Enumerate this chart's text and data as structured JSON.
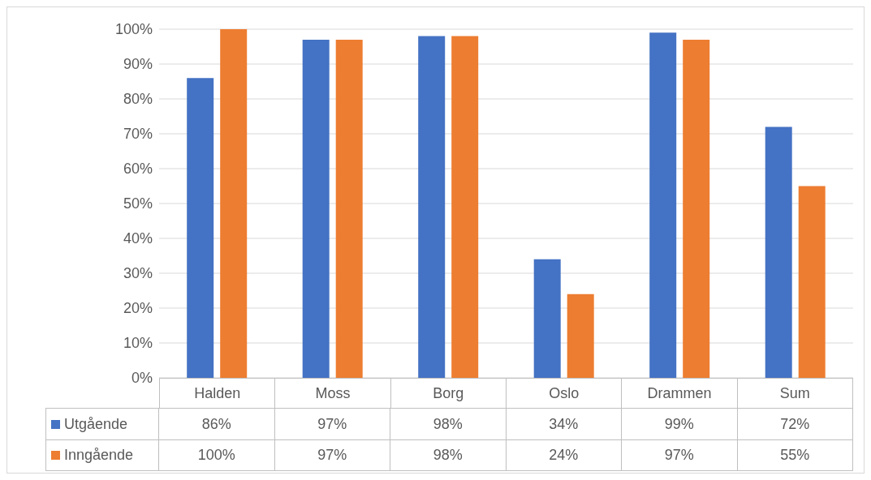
{
  "chart_data": {
    "type": "bar",
    "categories": [
      "Halden",
      "Moss",
      "Borg",
      "Oslo",
      "Drammen",
      "Sum"
    ],
    "series": [
      {
        "name": "Utgående",
        "color": "#4472c4",
        "values": [
          86,
          97,
          98,
          34,
          99,
          72
        ],
        "value_labels": [
          "86%",
          "97%",
          "98%",
          "34%",
          "99%",
          "72%"
        ]
      },
      {
        "name": "Inngående",
        "color": "#ed7d31",
        "values": [
          100,
          97,
          98,
          24,
          97,
          55
        ],
        "value_labels": [
          "100%",
          "97%",
          "98%",
          "24%",
          "97%",
          "55%"
        ]
      }
    ],
    "ylim": [
      0,
      100
    ],
    "yticks": [
      {
        "value": 0,
        "label": "0%"
      },
      {
        "value": 10,
        "label": "10%"
      },
      {
        "value": 20,
        "label": "20%"
      },
      {
        "value": 30,
        "label": "30%"
      },
      {
        "value": 40,
        "label": "40%"
      },
      {
        "value": 50,
        "label": "50%"
      },
      {
        "value": 60,
        "label": "60%"
      },
      {
        "value": 70,
        "label": "70%"
      },
      {
        "value": 80,
        "label": "80%"
      },
      {
        "value": 90,
        "label": "90%"
      },
      {
        "value": 100,
        "label": "100%"
      }
    ],
    "grid": "y",
    "legend": "bottom"
  }
}
